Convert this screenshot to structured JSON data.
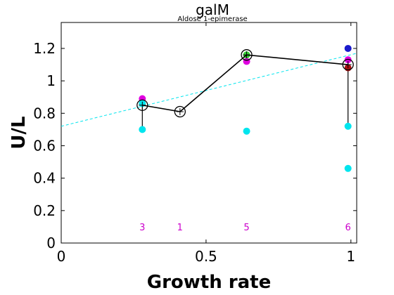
{
  "chart_data": {
    "type": "scatter",
    "title": "galM",
    "subtitle": "Aldose 1-epimerase",
    "xlabel": "Growth rate",
    "ylabel": "U/L",
    "xlim": [
      0,
      1.02
    ],
    "ylim": [
      0,
      1.36
    ],
    "x_ticks": [
      0,
      0.5,
      1
    ],
    "x_tick_labels": [
      "0",
      "0.5",
      "1"
    ],
    "y_ticks": [
      0,
      0.2,
      0.4,
      0.6,
      0.8,
      1.0,
      1.2
    ],
    "y_tick_labels": [
      "0",
      "0.2",
      "0.4",
      "0.6",
      "0.8",
      "1",
      "1.2"
    ],
    "mean_line": {
      "color": "#000000",
      "points": [
        {
          "x": 0.28,
          "y": 0.85
        },
        {
          "x": 0.41,
          "y": 0.81
        },
        {
          "x": 0.64,
          "y": 1.16
        },
        {
          "x": 0.99,
          "y": 1.1
        }
      ]
    },
    "error_bars": [
      {
        "x": 0.28,
        "low": 0.7,
        "high": 0.89
      },
      {
        "x": 0.99,
        "low": 0.72,
        "high": 1.13
      }
    ],
    "fit_line": {
      "color": "#00e5ee",
      "style": "dashed",
      "x": [
        0,
        1.02
      ],
      "y": [
        0.72,
        1.17
      ]
    },
    "points": [
      {
        "x": 0.28,
        "y": 0.89,
        "color": "#e000e0"
      },
      {
        "x": 0.28,
        "y": 0.86,
        "color": "#00e5ee"
      },
      {
        "x": 0.28,
        "y": 0.7,
        "color": "#00e5ee"
      },
      {
        "x": 0.64,
        "y": 1.12,
        "color": "#e000e0"
      },
      {
        "x": 0.64,
        "y": 1.16,
        "color": "#33cc33"
      },
      {
        "x": 0.64,
        "y": 0.69,
        "color": "#00e5ee"
      },
      {
        "x": 0.99,
        "y": 1.2,
        "color": "#1a1acc"
      },
      {
        "x": 0.99,
        "y": 1.13,
        "color": "#e000e0"
      },
      {
        "x": 0.99,
        "y": 1.08,
        "color": "#aa1111"
      },
      {
        "x": 0.99,
        "y": 0.72,
        "color": "#00e5ee"
      },
      {
        "x": 0.99,
        "y": 0.46,
        "color": "#00e5ee"
      }
    ],
    "counts": [
      {
        "x": 0.28,
        "label": "3"
      },
      {
        "x": 0.41,
        "label": "1"
      },
      {
        "x": 0.64,
        "label": "5"
      },
      {
        "x": 0.99,
        "label": "6"
      }
    ],
    "count_label_y": 0.1,
    "count_color": "#cc00cc"
  }
}
